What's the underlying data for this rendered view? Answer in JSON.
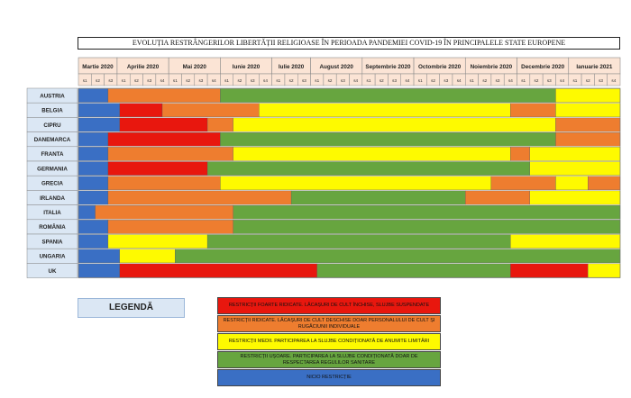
{
  "chart_data": {
    "type": "heatmap",
    "title": "EVOLUȚIA RESTRÂNGERILOR LIBERTĂȚII RELIGIOASE ÎN PERIOADA PANDEMIEI COVID-19 ÎN PRINCIPALELE STATE EUROPENE",
    "months": [
      "Martie 2020",
      "Aprilie 2020",
      "Mai 2020",
      "Iunie 2020",
      "Iulie 2020",
      "August 2020",
      "Septembrie 2020",
      "Octombrie 2020",
      "Noiembrie 2020",
      "Decembrie 2020",
      "Ianuarie 2021"
    ],
    "weeks_per_month": [
      3,
      4,
      4,
      4,
      3,
      4,
      4,
      4,
      4,
      4,
      4
    ],
    "week_labels": [
      "s1",
      "s2",
      "s3",
      "s1",
      "s2",
      "s3",
      "s4",
      "s1",
      "s2",
      "s3",
      "s4",
      "s1",
      "s2",
      "s3",
      "s4",
      "s1",
      "s2",
      "s3",
      "s1",
      "s2",
      "s3",
      "s4",
      "s1",
      "s2",
      "s3",
      "s4",
      "s1",
      "s2",
      "s3",
      "s4",
      "s1",
      "s2",
      "s3",
      "s4",
      "s1",
      "s2",
      "s3",
      "s4",
      "s1",
      "s2",
      "s3",
      "s4"
    ],
    "countries": [
      "AUSTRIA",
      "BELGIA",
      "CIPRU",
      "DANEMARCA",
      "FRANTA",
      "GERMANIA",
      "GRECIA",
      "IRLANDA",
      "ITALIA",
      "ROMÂNIA",
      "SPANIA",
      "UNGARIA",
      "UK"
    ],
    "levels": {
      "red": "#e8170e",
      "orange": "#ee7d2f",
      "yellow": "#fefa00",
      "green": "#67a53f",
      "blue": "#3a6fc4"
    },
    "rows": [
      [
        [
          "blue",
          0,
          2.3
        ],
        [
          "orange",
          2.3,
          11
        ],
        [
          "green",
          11,
          37
        ],
        [
          "yellow",
          37,
          42
        ]
      ],
      [
        [
          "blue",
          0,
          3.2
        ],
        [
          "red",
          3.2,
          6.5
        ],
        [
          "orange",
          6.5,
          14
        ],
        [
          "yellow",
          14,
          33.5
        ],
        [
          "orange",
          33.5,
          37
        ],
        [
          "yellow",
          37,
          42
        ]
      ],
      [
        [
          "blue",
          0,
          3.2
        ],
        [
          "red",
          3.2,
          10
        ],
        [
          "orange",
          10,
          12
        ],
        [
          "yellow",
          12,
          37
        ],
        [
          "orange",
          37,
          42
        ]
      ],
      [
        [
          "blue",
          0,
          2.3
        ],
        [
          "red",
          2.3,
          11
        ],
        [
          "green",
          11,
          37
        ],
        [
          "orange",
          37,
          42
        ]
      ],
      [
        [
          "blue",
          0,
          2.3
        ],
        [
          "orange",
          2.3,
          12
        ],
        [
          "yellow",
          12,
          33.5
        ],
        [
          "orange",
          33.5,
          35
        ],
        [
          "yellow",
          35,
          42
        ]
      ],
      [
        [
          "blue",
          0,
          2.3
        ],
        [
          "red",
          2.3,
          10
        ],
        [
          "green",
          10,
          35
        ],
        [
          "yellow",
          35,
          42
        ]
      ],
      [
        [
          "blue",
          0,
          2.3
        ],
        [
          "orange",
          2.3,
          11
        ],
        [
          "yellow",
          11,
          32
        ],
        [
          "orange",
          32,
          37
        ],
        [
          "yellow",
          37,
          39.5
        ],
        [
          "orange",
          39.5,
          42
        ]
      ],
      [
        [
          "blue",
          0,
          2.3
        ],
        [
          "orange",
          2.3,
          16.5
        ],
        [
          "green",
          16.5,
          30
        ],
        [
          "orange",
          30,
          35
        ],
        [
          "yellow",
          35,
          42
        ]
      ],
      [
        [
          "blue",
          0,
          1.3
        ],
        [
          "orange",
          1.3,
          12
        ],
        [
          "green",
          12,
          42
        ]
      ],
      [
        [
          "blue",
          0,
          2.3
        ],
        [
          "orange",
          2.3,
          12
        ],
        [
          "green",
          12,
          42
        ]
      ],
      [
        [
          "blue",
          0,
          2.3
        ],
        [
          "yellow",
          2.3,
          10
        ],
        [
          "green",
          10,
          33.5
        ],
        [
          "yellow",
          33.5,
          42
        ]
      ],
      [
        [
          "blue",
          0,
          3.2
        ],
        [
          "yellow",
          3.2,
          7.5
        ],
        [
          "green",
          7.5,
          42
        ]
      ],
      [
        [
          "blue",
          0,
          3.2
        ],
        [
          "red",
          3.2,
          18.5
        ],
        [
          "green",
          18.5,
          33.5
        ],
        [
          "red",
          33.5,
          39.5
        ],
        [
          "yellow",
          39.5,
          42
        ]
      ]
    ]
  },
  "legend": {
    "title": "LEGENDĂ",
    "items": [
      {
        "color": "#e8170e",
        "text": "RESTRICȚII FOARTE RIDICATE. LĂCAȘURI DE CULT ÎNCHISE, SLUJBE SUSPENDATE"
      },
      {
        "color": "#ee7d2f",
        "text": "RESTRICȚII RIDICATE. LĂCAȘURI DE CULT DESCHISE DOAR PERSONALULUI DE CULT ȘI RUGĂCIUNII INDIVIDUALE"
      },
      {
        "color": "#fefa00",
        "text": "RESTRICȚII MEDII. PARTICIPAREA LA SLUJBE CONDIȚIONATĂ DE ANUMITE LIMITĂRI"
      },
      {
        "color": "#67a53f",
        "text": "RESTRICȚII UȘOARE. PARTICIPAREA LA SLUJBE CONDIȚIONATĂ DOAR DE RESPECTAREA REGULILOR SANITARE"
      },
      {
        "color": "#3a6fc4",
        "text": "NICIO RESTRICȚIE"
      }
    ]
  }
}
